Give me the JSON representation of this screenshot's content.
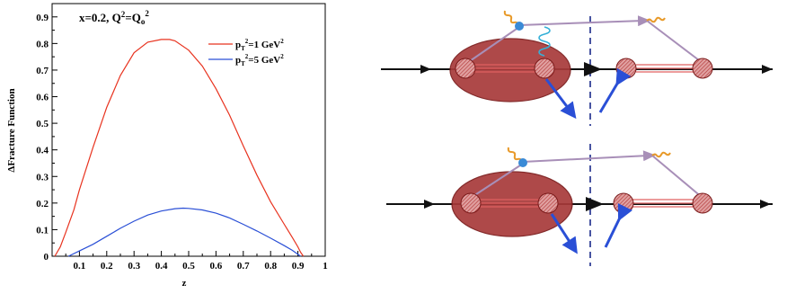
{
  "chart_data": {
    "type": "line",
    "xlabel": "z",
    "ylabel": "ΔFracture Function",
    "xlim": [
      0,
      1
    ],
    "ylim": [
      0,
      0.95
    ],
    "xticks": [
      0.1,
      0.2,
      0.3,
      0.4,
      0.5,
      0.6,
      0.7,
      0.8,
      0.9,
      1
    ],
    "xtick_labels": [
      "0.1",
      "0.2",
      "0.3",
      "0.4",
      "0.5",
      "0.6",
      "0.7",
      "0.8",
      "0.9",
      "1"
    ],
    "yticks": [
      0,
      0.1,
      0.2,
      0.3,
      0.4,
      0.5,
      0.6,
      0.7,
      0.8,
      0.9
    ],
    "ytick_labels": [
      "0",
      "0.1",
      "0.2",
      "0.3",
      "0.4",
      "0.5",
      "0.6",
      "0.7",
      "0.8",
      "0.9"
    ],
    "grid": false,
    "legend_position": "top-right",
    "annotation": {
      "base": "x=0.2, Q",
      "sup": "2",
      "mid": "=Q",
      "sub": "o",
      "sup2": "2"
    },
    "series": [
      {
        "name": "pT2=1 GeV2",
        "legend": {
          "p": "p",
          "sub": "T",
          "sup": "2",
          "text": "=1 GeV",
          "sup2": "2"
        },
        "color": "#e8331f",
        "x": [
          0.01,
          0.03,
          0.05,
          0.08,
          0.1,
          0.15,
          0.2,
          0.25,
          0.3,
          0.35,
          0.4,
          0.43,
          0.45,
          0.5,
          0.55,
          0.6,
          0.65,
          0.7,
          0.75,
          0.8,
          0.85,
          0.88,
          0.9,
          0.91,
          0.92
        ],
        "y": [
          0.0,
          0.035,
          0.09,
          0.175,
          0.25,
          0.41,
          0.56,
          0.68,
          0.765,
          0.805,
          0.815,
          0.815,
          0.81,
          0.775,
          0.715,
          0.63,
          0.53,
          0.415,
          0.305,
          0.205,
          0.12,
          0.07,
          0.035,
          0.015,
          0.0
        ]
      },
      {
        "name": "pT2=5 GeV2",
        "legend": {
          "p": "p",
          "sub": "T",
          "sup": "2",
          "text": "=5 GeV",
          "sup2": "2"
        },
        "color": "#2a4fd6",
        "x": [
          0.06,
          0.1,
          0.15,
          0.2,
          0.25,
          0.3,
          0.35,
          0.4,
          0.45,
          0.48,
          0.5,
          0.55,
          0.6,
          0.65,
          0.7,
          0.75,
          0.8,
          0.85,
          0.88,
          0.91
        ],
        "y": [
          0.0,
          0.02,
          0.045,
          0.075,
          0.105,
          0.132,
          0.155,
          0.17,
          0.179,
          0.181,
          0.18,
          0.174,
          0.162,
          0.144,
          0.12,
          0.095,
          0.068,
          0.04,
          0.022,
          0.0
        ]
      }
    ]
  },
  "diagram": {
    "colors": {
      "blob": "#a83a3a",
      "blob_edge": "#7a1a1a",
      "line": "#111111",
      "quark": "#e06060",
      "photon": "#e89a2a",
      "gluon": "#35b0d8",
      "arrow": "#2a4fd6",
      "virtual": "#a88fb8",
      "cut": "#1a2a8a"
    },
    "panels": [
      "top",
      "bottom"
    ]
  }
}
